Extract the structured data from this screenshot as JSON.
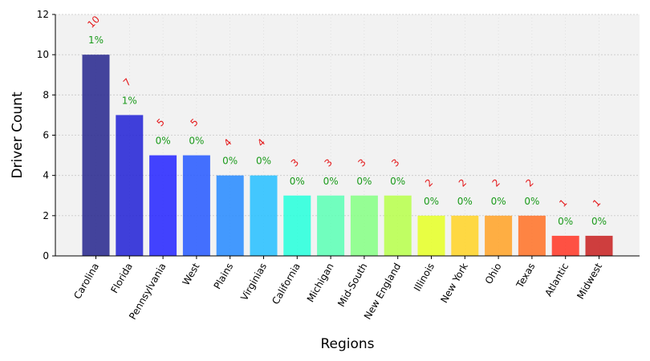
{
  "chart_data": {
    "type": "bar",
    "title": "",
    "xlabel": "Regions",
    "ylabel": "Driver Count",
    "ylim": [
      0,
      12
    ],
    "yticks": [
      0,
      2,
      4,
      6,
      8,
      10,
      12
    ],
    "grid": true,
    "categories": [
      "Carolina",
      "Florida",
      "Pennsylvania",
      "West",
      "Plains",
      "Virginias",
      "California",
      "Michigan",
      "Mid-South",
      "New England",
      "Illinois",
      "New York",
      "Ohio",
      "Texas",
      "Atlantic",
      "Midwest"
    ],
    "values": [
      10,
      7,
      5,
      5,
      4,
      4,
      3,
      3,
      3,
      3,
      2,
      2,
      2,
      2,
      1,
      1
    ],
    "count_labels": [
      "10",
      "7",
      "5",
      "5",
      "4",
      "4",
      "3",
      "3",
      "3",
      "3",
      "2",
      "2",
      "2",
      "2",
      "1",
      "1"
    ],
    "percent_labels": [
      "1%",
      "1%",
      "0%",
      "0%",
      "0%",
      "0%",
      "0%",
      "0%",
      "0%",
      "0%",
      "0%",
      "0%",
      "0%",
      "0%",
      "0%",
      "0%"
    ],
    "bar_colors": [
      "#2a2a8f",
      "#2626d6",
      "#2929ff",
      "#2a5cff",
      "#2a8cff",
      "#2ac0ff",
      "#2affdc",
      "#5fffb6",
      "#88ff86",
      "#b8ff4e",
      "#e6ff2a",
      "#ffd42a",
      "#ffa42a",
      "#ff742a",
      "#ff3a2a",
      "#c82424"
    ],
    "count_label_color": "#e41a1c",
    "percent_label_color": "#1a9a1a",
    "plot_background": "#f2f2f2"
  }
}
